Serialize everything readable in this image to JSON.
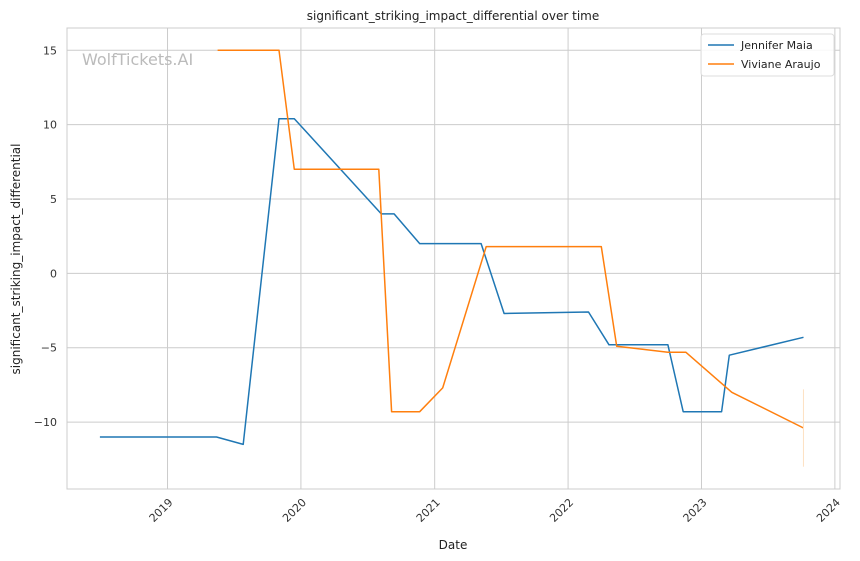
{
  "chart_data": {
    "type": "line",
    "title": "significant_striking_impact_differential over time",
    "xlabel": "Date",
    "ylabel": "significant_striking_impact_differential",
    "watermark": "WolfTickets.AI",
    "x_ticks": [
      "2019",
      "2020",
      "2021",
      "2022",
      "2023",
      "2024"
    ],
    "y_ticks": [
      -10,
      -5,
      0,
      5,
      10,
      15
    ],
    "xlim": [
      "2018-04-01",
      "2024-01-15"
    ],
    "ylim": [
      -14.5,
      16.5
    ],
    "grid": true,
    "legend_position": "top-right",
    "series": [
      {
        "name": "Jennifer Maia",
        "color": "#1f77b4",
        "points": [
          [
            "2018-06-30",
            -11.0
          ],
          [
            "2019-05-15",
            -11.0
          ],
          [
            "2019-07-27",
            -11.5
          ],
          [
            "2019-11-02",
            10.4
          ],
          [
            "2019-12-14",
            10.4
          ],
          [
            "2020-08-08",
            4.0
          ],
          [
            "2020-09-12",
            4.0
          ],
          [
            "2020-11-21",
            2.0
          ],
          [
            "2021-05-08",
            2.0
          ],
          [
            "2021-07-10",
            -2.7
          ],
          [
            "2022-02-26",
            -2.6
          ],
          [
            "2022-04-23",
            -4.8
          ],
          [
            "2022-10-01",
            -4.8
          ],
          [
            "2022-11-12",
            -9.3
          ],
          [
            "2023-02-25",
            -9.3
          ],
          [
            "2023-03-18",
            -5.5
          ],
          [
            "2023-10-07",
            -4.3
          ]
        ]
      },
      {
        "name": "Viviane Araujo",
        "color": "#ff7f0e",
        "points": [
          [
            "2019-05-18",
            15.0
          ],
          [
            "2019-11-02",
            15.0
          ],
          [
            "2019-12-14",
            7.0
          ],
          [
            "2020-08-01",
            7.0
          ],
          [
            "2020-09-05",
            -9.3
          ],
          [
            "2020-11-21",
            -9.3
          ],
          [
            "2021-01-23",
            -7.7
          ],
          [
            "2021-05-22",
            1.8
          ],
          [
            "2022-04-02",
            1.8
          ],
          [
            "2022-05-14",
            -4.9
          ],
          [
            "2022-10-01",
            -5.3
          ],
          [
            "2022-11-19",
            -5.3
          ],
          [
            "2023-03-25",
            -8.0
          ],
          [
            "2023-10-07",
            -10.4
          ]
        ]
      }
    ],
    "extra_mark": {
      "type": "vertical-line",
      "x": "2023-10-07",
      "y_from": -13.0,
      "y_to": -7.8,
      "color": "#fde0c2"
    }
  }
}
